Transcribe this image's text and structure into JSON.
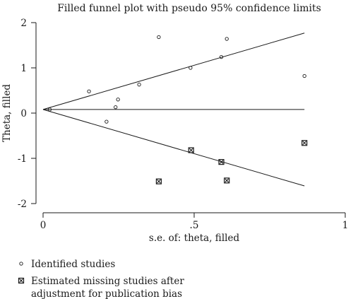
{
  "chart_data": {
    "type": "scatter",
    "title": "Filled funnel plot with pseudo 95% confidence limits",
    "xlabel": "s.e. of: theta, filled",
    "ylabel": "Theta, filled",
    "xlim": [
      0,
      1
    ],
    "ylim": [
      -2,
      2
    ],
    "x_ticks": [
      "0",
      ".5",
      "1"
    ],
    "y_ticks": [
      "-2",
      "-1",
      "0",
      "1",
      "2"
    ],
    "grid": false,
    "legend_position": "bottom-left",
    "pooled_estimate": 0.08,
    "confidence_limit_lines": {
      "upper": [
        [
          0,
          0.08
        ],
        [
          0.865,
          1.77
        ]
      ],
      "lower": [
        [
          0,
          0.08
        ],
        [
          0.865,
          -1.61
        ]
      ]
    },
    "series": [
      {
        "name": "Identified studies",
        "marker": "circle",
        "points": [
          {
            "x": 0.022,
            "y": 0.08
          },
          {
            "x": 0.152,
            "y": 0.48
          },
          {
            "x": 0.21,
            "y": -0.19
          },
          {
            "x": 0.24,
            "y": 0.13
          },
          {
            "x": 0.248,
            "y": 0.3
          },
          {
            "x": 0.318,
            "y": 0.63
          },
          {
            "x": 0.383,
            "y": 1.68
          },
          {
            "x": 0.488,
            "y": 1.0
          },
          {
            "x": 0.59,
            "y": 1.24
          },
          {
            "x": 0.608,
            "y": 1.64
          },
          {
            "x": 0.865,
            "y": 0.82
          }
        ]
      },
      {
        "name": "Estimated missing studies after adjustment for publication bias",
        "legend_lines": [
          "Estimated missing studies after",
          "adjustment for publication bias"
        ],
        "marker": "boxed-x",
        "points": [
          {
            "x": 0.383,
            "y": -1.51
          },
          {
            "x": 0.49,
            "y": -0.82
          },
          {
            "x": 0.59,
            "y": -1.08
          },
          {
            "x": 0.608,
            "y": -1.49
          },
          {
            "x": 0.865,
            "y": -0.66
          }
        ]
      }
    ],
    "colors": {
      "ink": "#1a1a1a",
      "background": "#ffffff"
    }
  }
}
